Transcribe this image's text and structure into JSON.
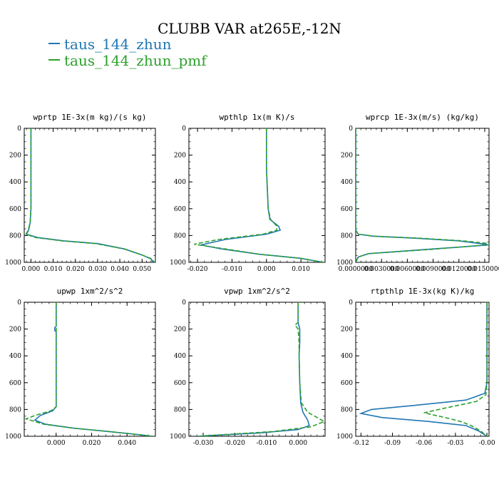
{
  "title": "CLUBB VAR at265E,-12N",
  "legend": [
    {
      "name": "taus_144_zhun",
      "color": "#1f77b4",
      "style": "solid"
    },
    {
      "name": "taus_144_zhun_pmf",
      "color": "#2ca02c",
      "style": "dashed"
    }
  ],
  "chart_data": [
    {
      "type": "line",
      "title": "wprtp  1E-3x(m kg)/(s kg)",
      "xlim": [
        -0.003,
        0.056
      ],
      "ylim": [
        1000,
        0
      ],
      "xticks": [
        0.0,
        0.01,
        0.02,
        0.03,
        0.04,
        0.05
      ],
      "xticklabels": [
        "0.000",
        "0.010",
        "0.020",
        "0.030",
        "0.040",
        "0.050"
      ],
      "yticks": [
        0,
        200,
        400,
        600,
        800,
        1000
      ],
      "series": [
        {
          "name": "taus_144_zhun",
          "points": [
            [
              0.0,
              0
            ],
            [
              0.0,
              300
            ],
            [
              0.0,
              600
            ],
            [
              -0.0003,
              700
            ],
            [
              -0.001,
              760
            ],
            [
              -0.002,
              790
            ],
            [
              0.003,
              815
            ],
            [
              0.015,
              840
            ],
            [
              0.03,
              860
            ],
            [
              0.042,
              900
            ],
            [
              0.05,
              945
            ],
            [
              0.054,
              975
            ],
            [
              0.055,
              1000
            ]
          ]
        },
        {
          "name": "taus_144_zhun_pmf",
          "points": [
            [
              0.0,
              0
            ],
            [
              0.0,
              300
            ],
            [
              0.0,
              600
            ],
            [
              -0.0003,
              700
            ],
            [
              -0.0012,
              760
            ],
            [
              -0.0022,
              790
            ],
            [
              0.002,
              815
            ],
            [
              0.014,
              840
            ],
            [
              0.029,
              860
            ],
            [
              0.042,
              900
            ],
            [
              0.05,
              945
            ],
            [
              0.0545,
              975
            ],
            [
              0.0555,
              1000
            ]
          ]
        }
      ]
    },
    {
      "type": "line",
      "title": "wpthlp  1x(m K)/s",
      "xlim": [
        -0.0225,
        0.017
      ],
      "ylim": [
        1000,
        0
      ],
      "xticks": [
        -0.02,
        -0.01,
        0.0,
        0.01
      ],
      "xticklabels": [
        "-0.020",
        "-0.010",
        "0.000",
        "0.010"
      ],
      "yticks": [
        0,
        200,
        400,
        600,
        800,
        1000
      ],
      "series": [
        {
          "name": "taus_144_zhun",
          "points": [
            [
              0.0,
              0
            ],
            [
              0.0,
              300
            ],
            [
              0.0005,
              600
            ],
            [
              0.001,
              680
            ],
            [
              0.0035,
              730
            ],
            [
              0.004,
              760
            ],
            [
              0.0,
              790
            ],
            [
              -0.012,
              830
            ],
            [
              -0.019,
              870
            ],
            [
              -0.013,
              900
            ],
            [
              -0.002,
              940
            ],
            [
              0.01,
              970
            ],
            [
              0.0165,
              1000
            ]
          ]
        },
        {
          "name": "taus_144_zhun_pmf",
          "points": [
            [
              0.0,
              0
            ],
            [
              0.0,
              300
            ],
            [
              0.0005,
              600
            ],
            [
              0.0012,
              680
            ],
            [
              0.003,
              730
            ],
            [
              0.003,
              760
            ],
            [
              -0.001,
              790
            ],
            [
              -0.014,
              830
            ],
            [
              -0.021,
              865
            ],
            [
              -0.012,
              900
            ],
            [
              -0.002,
              940
            ],
            [
              0.01,
              970
            ],
            [
              0.0165,
              1000
            ]
          ]
        }
      ]
    },
    {
      "type": "line",
      "title": "wprcp  1E-3x(m/s) (kg/kg)",
      "xlim": [
        0.0,
        0.0155
      ],
      "ylim": [
        1000,
        0
      ],
      "xticks": [
        0.0,
        0.003,
        0.006,
        0.009,
        0.012,
        0.015
      ],
      "xticklabels": [
        "0.0000000",
        "0.0030000",
        "0.0060000",
        "0.0090000",
        "0.0120000",
        "0.0150000"
      ],
      "yticks": [
        0,
        200,
        400,
        600,
        800,
        1000
      ],
      "series": [
        {
          "name": "taus_144_zhun",
          "points": [
            [
              0.0,
              0
            ],
            [
              0.0,
              760
            ],
            [
              0.0003,
              790
            ],
            [
              0.002,
              805
            ],
            [
              0.007,
              820
            ],
            [
              0.012,
              840
            ],
            [
              0.0145,
              860
            ],
            [
              0.0155,
              870
            ],
            [
              0.008,
              905
            ],
            [
              0.0015,
              935
            ],
            [
              0.0003,
              960
            ],
            [
              0.0,
              1000
            ]
          ]
        },
        {
          "name": "taus_144_zhun_pmf",
          "points": [
            [
              0.0,
              0
            ],
            [
              0.0,
              760
            ],
            [
              0.0003,
              790
            ],
            [
              0.0022,
              805
            ],
            [
              0.0075,
              820
            ],
            [
              0.0125,
              840
            ],
            [
              0.0152,
              858
            ],
            [
              0.0156,
              868
            ],
            [
              0.0085,
              905
            ],
            [
              0.0015,
              935
            ],
            [
              0.0003,
              960
            ],
            [
              0.0,
              1000
            ]
          ]
        }
      ]
    },
    {
      "type": "line",
      "title": "upwp  1xm^2/s^2",
      "xlim": [
        -0.018,
        0.056
      ],
      "ylim": [
        1000,
        0
      ],
      "xticks": [
        0.0,
        0.02,
        0.04
      ],
      "xticklabels": [
        "0.000",
        "0.020",
        "0.040"
      ],
      "yticks": [
        0,
        200,
        400,
        600,
        800,
        1000
      ],
      "series": [
        {
          "name": "taus_144_zhun",
          "points": [
            [
              0.0,
              0
            ],
            [
              0.0,
              180
            ],
            [
              -0.0008,
              190
            ],
            [
              -0.0008,
              210
            ],
            [
              0.0,
              220
            ],
            [
              0.0,
              600
            ],
            [
              0.0,
              780
            ],
            [
              -0.002,
              810
            ],
            [
              -0.009,
              845
            ],
            [
              -0.012,
              880
            ],
            [
              -0.006,
              910
            ],
            [
              0.01,
              940
            ],
            [
              0.03,
              965
            ],
            [
              0.048,
              990
            ],
            [
              0.054,
              1000
            ]
          ]
        },
        {
          "name": "taus_144_zhun_pmf",
          "points": [
            [
              0.0,
              0
            ],
            [
              0.0,
              600
            ],
            [
              0.0,
              780
            ],
            [
              -0.003,
              810
            ],
            [
              -0.012,
              845
            ],
            [
              -0.017,
              870
            ],
            [
              -0.007,
              910
            ],
            [
              0.01,
              940
            ],
            [
              0.03,
              965
            ],
            [
              0.048,
              990
            ],
            [
              0.055,
              1000
            ]
          ]
        }
      ]
    },
    {
      "type": "line",
      "title": "vpwp  1xm^2/s^2",
      "xlim": [
        -0.0345,
        0.0085
      ],
      "ylim": [
        1000,
        0
      ],
      "xticks": [
        -0.03,
        -0.02,
        -0.01,
        0.0
      ],
      "xticklabels": [
        "-0.030",
        "-0.020",
        "-0.010",
        "0.000"
      ],
      "yticks": [
        0,
        200,
        400,
        600,
        800,
        1000
      ],
      "series": [
        {
          "name": "taus_144_zhun",
          "points": [
            [
              0.0,
              0
            ],
            [
              0.0,
              150
            ],
            [
              0.0005,
              200
            ],
            [
              0.0005,
              300
            ],
            [
              0.0003,
              400
            ],
            [
              0.0005,
              600
            ],
            [
              0.0008,
              750
            ],
            [
              0.0015,
              820
            ],
            [
              0.003,
              880
            ],
            [
              0.0035,
              920
            ],
            [
              0.0,
              950
            ],
            [
              -0.012,
              975
            ],
            [
              -0.028,
              995
            ],
            [
              -0.032,
              1000
            ]
          ]
        },
        {
          "name": "taus_144_zhun_pmf",
          "points": [
            [
              0.0,
              0
            ],
            [
              0.0,
              150
            ],
            [
              -0.001,
              170
            ],
            [
              0.0,
              200
            ],
            [
              0.0003,
              300
            ],
            [
              0.0003,
              400
            ],
            [
              0.0005,
              600
            ],
            [
              0.001,
              750
            ],
            [
              0.003,
              820
            ],
            [
              0.006,
              860
            ],
            [
              0.0082,
              890
            ],
            [
              0.004,
              930
            ],
            [
              -0.008,
              965
            ],
            [
              -0.025,
              990
            ],
            [
              -0.032,
              1000
            ]
          ]
        }
      ]
    },
    {
      "type": "line",
      "title": "rtpthlp  1E-3x(kg K)/kg",
      "xlim": [
        -0.125,
        0.002
      ],
      "ylim": [
        1000,
        0
      ],
      "xticks": [
        -0.12,
        -0.09,
        -0.06,
        -0.03,
        0.0
      ],
      "xticklabels": [
        "-0.12",
        "-0.09",
        "-0.06",
        "-0.03",
        "-0.00"
      ],
      "yticks": [
        0,
        200,
        400,
        600,
        800,
        1000
      ],
      "series": [
        {
          "name": "taus_144_zhun",
          "points": [
            [
              0.0,
              0
            ],
            [
              0.0,
              600
            ],
            [
              -0.002,
              680
            ],
            [
              -0.02,
              730
            ],
            [
              -0.07,
              770
            ],
            [
              -0.11,
              800
            ],
            [
              -0.12,
              830
            ],
            [
              -0.1,
              860
            ],
            [
              -0.055,
              890
            ],
            [
              -0.02,
              920
            ],
            [
              -0.008,
              960
            ],
            [
              0.0,
              1000
            ]
          ]
        },
        {
          "name": "taus_144_zhun_pmf",
          "points": [
            [
              0.0,
              0
            ],
            [
              0.0,
              600
            ],
            [
              -0.001,
              690
            ],
            [
              -0.01,
              740
            ],
            [
              -0.04,
              790
            ],
            [
              -0.06,
              825
            ],
            [
              -0.04,
              860
            ],
            [
              -0.025,
              890
            ],
            [
              -0.015,
              920
            ],
            [
              -0.006,
              960
            ],
            [
              0.0,
              1000
            ]
          ]
        }
      ]
    }
  ]
}
